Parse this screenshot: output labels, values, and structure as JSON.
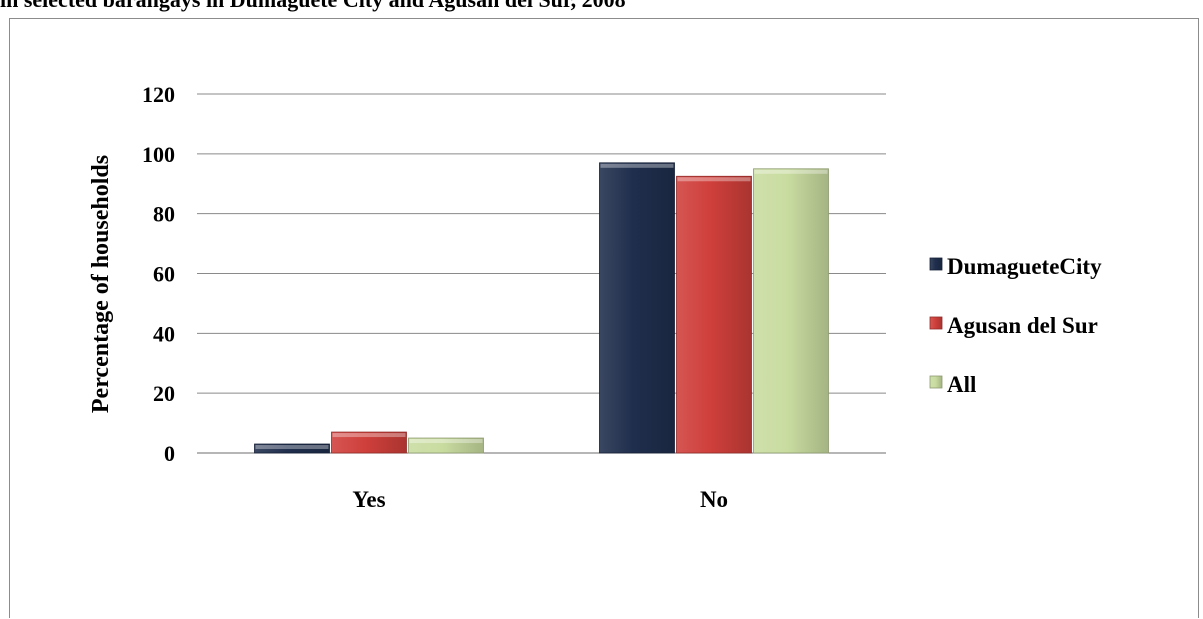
{
  "figure": {
    "caption": "in selected barangays in Dumaguete City and Agusan del Sur, 2008"
  },
  "chart_data": {
    "type": "bar",
    "categories": [
      "Yes",
      "No"
    ],
    "series": [
      {
        "name": "DumagueteCity",
        "values": [
          3,
          97
        ],
        "color": "#1f2e4d"
      },
      {
        "name": "Agusan del Sur",
        "values": [
          7,
          92.5
        ],
        "color": "#cf3f3b"
      },
      {
        "name": "All",
        "values": [
          5,
          95
        ],
        "color": "#c9dca0"
      }
    ],
    "title": "",
    "xlabel": "",
    "ylabel": "Percentage of households",
    "ylim": [
      0,
      120
    ],
    "yticks": [
      0,
      20,
      40,
      60,
      80,
      100,
      120
    ],
    "grid": true,
    "legend_position": "right"
  }
}
